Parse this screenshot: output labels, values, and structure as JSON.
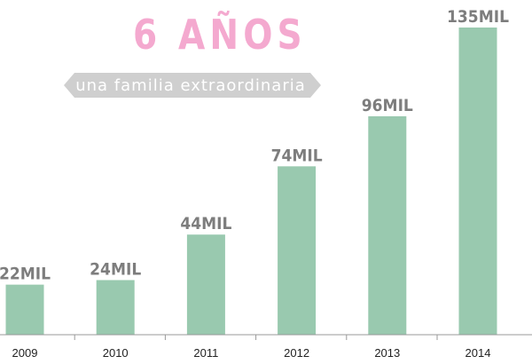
{
  "header": {
    "title": "6 AÑOS",
    "subtitle": "una familia extraordinaria"
  },
  "colors": {
    "bar": "#99c9af",
    "title": "#f4a9cf",
    "ribbon": "#cfcfcf",
    "value_label": "#7d7d7d",
    "axis": "#999999"
  },
  "chart_data": {
    "type": "bar",
    "categories": [
      "2009",
      "2010",
      "2011",
      "2012",
      "2013",
      "2014"
    ],
    "values": [
      22,
      24,
      44,
      74,
      96,
      135
    ],
    "value_labels": [
      "22MIL",
      "24MIL",
      "44MIL",
      "74MIL",
      "96MIL",
      "135MIL"
    ],
    "title": "6 AÑOS",
    "subtitle": "una familia extraordinaria",
    "ylim": [
      0,
      135
    ],
    "grid": false,
    "legend": "none"
  }
}
